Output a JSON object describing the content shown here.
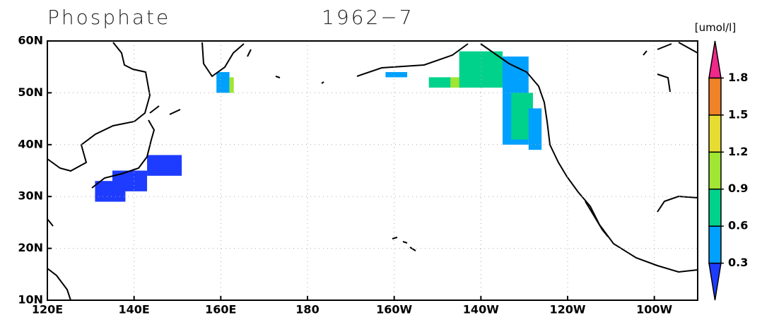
{
  "chart_data": {
    "type": "map",
    "title": "Phosphate",
    "subtitle": "1962−7",
    "units": "[umol/l]",
    "xlim": [
      120,
      270
    ],
    "ylim": [
      10,
      60
    ],
    "xticks": [
      {
        "value": 120,
        "label": "120E"
      },
      {
        "value": 140,
        "label": "140E"
      },
      {
        "value": 160,
        "label": "160E"
      },
      180,
      {
        "value": 200,
        "label": "160W"
      },
      {
        "value": 220,
        "label": "140W"
      },
      {
        "value": 240,
        "label": "120W"
      },
      {
        "value": 260,
        "label": "100W"
      }
    ],
    "yticks": [
      {
        "value": 10,
        "label": "10N"
      },
      {
        "value": 20,
        "label": "20N"
      },
      {
        "value": 30,
        "label": "30N"
      },
      {
        "value": 40,
        "label": "40N"
      },
      {
        "value": 50,
        "label": "50N"
      },
      {
        "value": 60,
        "label": "60N"
      }
    ],
    "grid": true,
    "colorbar": {
      "levels": [
        0.3,
        0.6,
        0.9,
        1.2,
        1.5,
        1.8
      ],
      "colors": [
        "#1e3cff",
        "#00a0ff",
        "#00d28c",
        "#a0e632",
        "#e6dc32",
        "#f08228",
        "#f0288c"
      ]
    },
    "cells": [
      {
        "lon": [
          143,
          151
        ],
        "lat": [
          34,
          38
        ],
        "value": 0.2
      },
      {
        "lon": [
          135,
          143
        ],
        "lat": [
          31,
          35
        ],
        "value": 0.2
      },
      {
        "lon": [
          131,
          138
        ],
        "lat": [
          29,
          33
        ],
        "value": 0.2
      },
      {
        "lon": [
          159,
          162
        ],
        "lat": [
          50,
          54
        ],
        "value": 0.4
      },
      {
        "lon": [
          162,
          163
        ],
        "lat": [
          50,
          53
        ],
        "value": 1.0
      },
      {
        "lon": [
          198,
          203
        ],
        "lat": [
          53,
          54
        ],
        "value": 0.4
      },
      {
        "lon": [
          208,
          213
        ],
        "lat": [
          51,
          53
        ],
        "value": 0.8
      },
      {
        "lon": [
          213,
          216
        ],
        "lat": [
          51,
          53
        ],
        "value": 1.0
      },
      {
        "lon": [
          215,
          225
        ],
        "lat": [
          51,
          58
        ],
        "value": 0.7
      },
      {
        "lon": [
          225,
          231
        ],
        "lat": [
          40,
          57
        ],
        "value": 0.4
      },
      {
        "lon": [
          227,
          232
        ],
        "lat": [
          41,
          50
        ],
        "value": 0.7
      },
      {
        "lon": [
          231,
          234
        ],
        "lat": [
          39,
          47
        ],
        "value": 0.4
      }
    ]
  }
}
